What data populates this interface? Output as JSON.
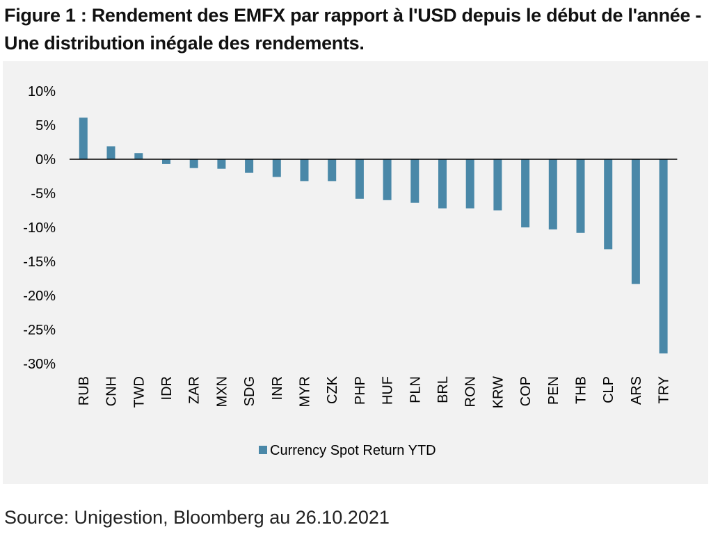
{
  "title": "Figure 1 : Rendement des EMFX par rapport à l'USD depuis le début de l'année - Une distribution inégale des rendements.",
  "source": "Source: Unigestion, Bloomberg au 26.10.2021",
  "colors": {
    "bar": "#4a88a8",
    "panel_background": "#f2f2f2",
    "zero_line": "#000000"
  },
  "chart_data": {
    "type": "bar",
    "categories": [
      "RUB",
      "CNH",
      "TWD",
      "IDR",
      "ZAR",
      "MXN",
      "SDG",
      "INR",
      "MYR",
      "CZK",
      "PHP",
      "HUF",
      "PLN",
      "BRL",
      "RON",
      "KRW",
      "COP",
      "PEN",
      "THB",
      "CLP",
      "ARS",
      "TRY"
    ],
    "series": [
      {
        "name": "Currency Spot Return YTD",
        "values": [
          6.1,
          1.9,
          0.9,
          -0.7,
          -1.3,
          -1.4,
          -2.0,
          -2.6,
          -3.2,
          -3.2,
          -5.8,
          -6.0,
          -6.4,
          -7.2,
          -7.2,
          -7.5,
          -10.0,
          -10.3,
          -10.8,
          -13.2,
          -18.3,
          -28.5
        ]
      }
    ],
    "ylim": [
      -30,
      10
    ],
    "yticks": [
      10,
      5,
      0,
      -5,
      -10,
      -15,
      -20,
      -25,
      -30
    ],
    "ytick_labels": [
      "10%",
      "5%",
      "0%",
      "-5%",
      "-10%",
      "-15%",
      "-20%",
      "-25%",
      "-30%"
    ],
    "xlabel": "",
    "ylabel": "",
    "grid": false,
    "legend": "bottom-center"
  }
}
